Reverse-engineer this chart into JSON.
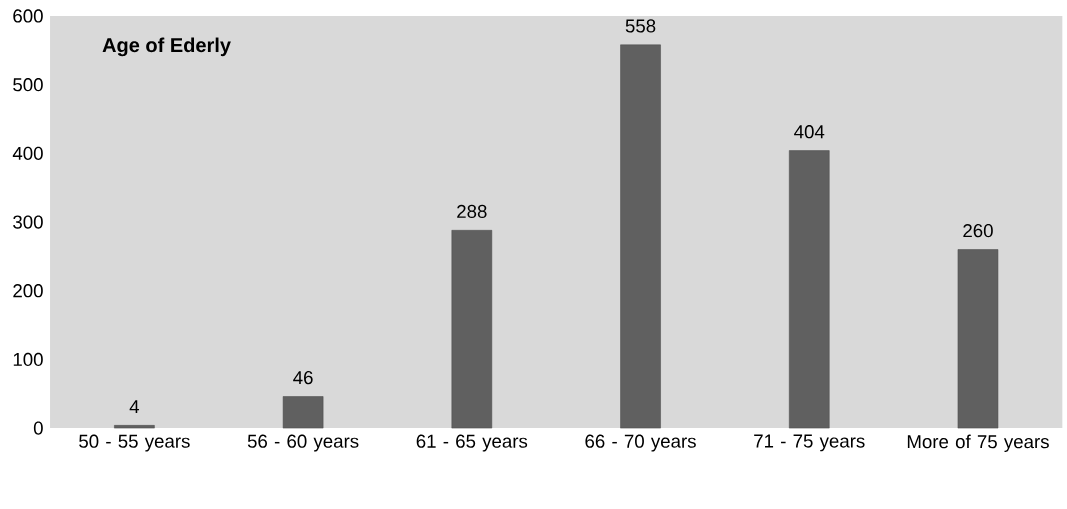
{
  "chart_data": {
    "type": "bar",
    "title": "Age of Ederly",
    "categories": [
      "50 - 55 years",
      "56 - 60 years",
      "61 - 65 years",
      "66 - 70 years",
      "71 - 75 years",
      "More of 75 years"
    ],
    "values": [
      4,
      46,
      288,
      558,
      404,
      260
    ],
    "value_labels": [
      "4",
      "46",
      "288",
      "558",
      "404",
      "260"
    ],
    "color": "#606060",
    "ylim": [
      0,
      600
    ],
    "yticks": [
      0,
      100,
      200,
      300,
      400,
      500,
      600
    ]
  }
}
